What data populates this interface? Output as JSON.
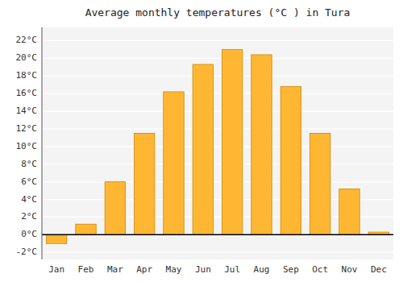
{
  "chart_data": {
    "type": "bar",
    "title": "Average monthly temperatures (°C ) in Tura",
    "categories": [
      "Jan",
      "Feb",
      "Mar",
      "Apr",
      "May",
      "Jun",
      "Jul",
      "Aug",
      "Sep",
      "Oct",
      "Nov",
      "Dec"
    ],
    "values": [
      -1.0,
      1.2,
      6.0,
      11.5,
      16.2,
      19.3,
      21.0,
      20.4,
      16.8,
      11.5,
      5.2,
      0.3
    ],
    "color": "#FFB733",
    "ylim": [
      -2.8,
      23.5
    ],
    "yticks": [
      {
        "value": -2,
        "label": "-2°C"
      },
      {
        "value": 0,
        "label": "0°C"
      },
      {
        "value": 2,
        "label": "2°C"
      },
      {
        "value": 4,
        "label": "4°C"
      },
      {
        "value": 6,
        "label": "6°C"
      },
      {
        "value": 8,
        "label": "8°C"
      },
      {
        "value": 10,
        "label": "10°C"
      },
      {
        "value": 12,
        "label": "12°C"
      },
      {
        "value": 14,
        "label": "14°C"
      },
      {
        "value": 16,
        "label": "16°C"
      },
      {
        "value": 18,
        "label": "18°C"
      },
      {
        "value": 20,
        "label": "20°C"
      },
      {
        "value": 22,
        "label": "22°C"
      }
    ],
    "grid": true
  }
}
